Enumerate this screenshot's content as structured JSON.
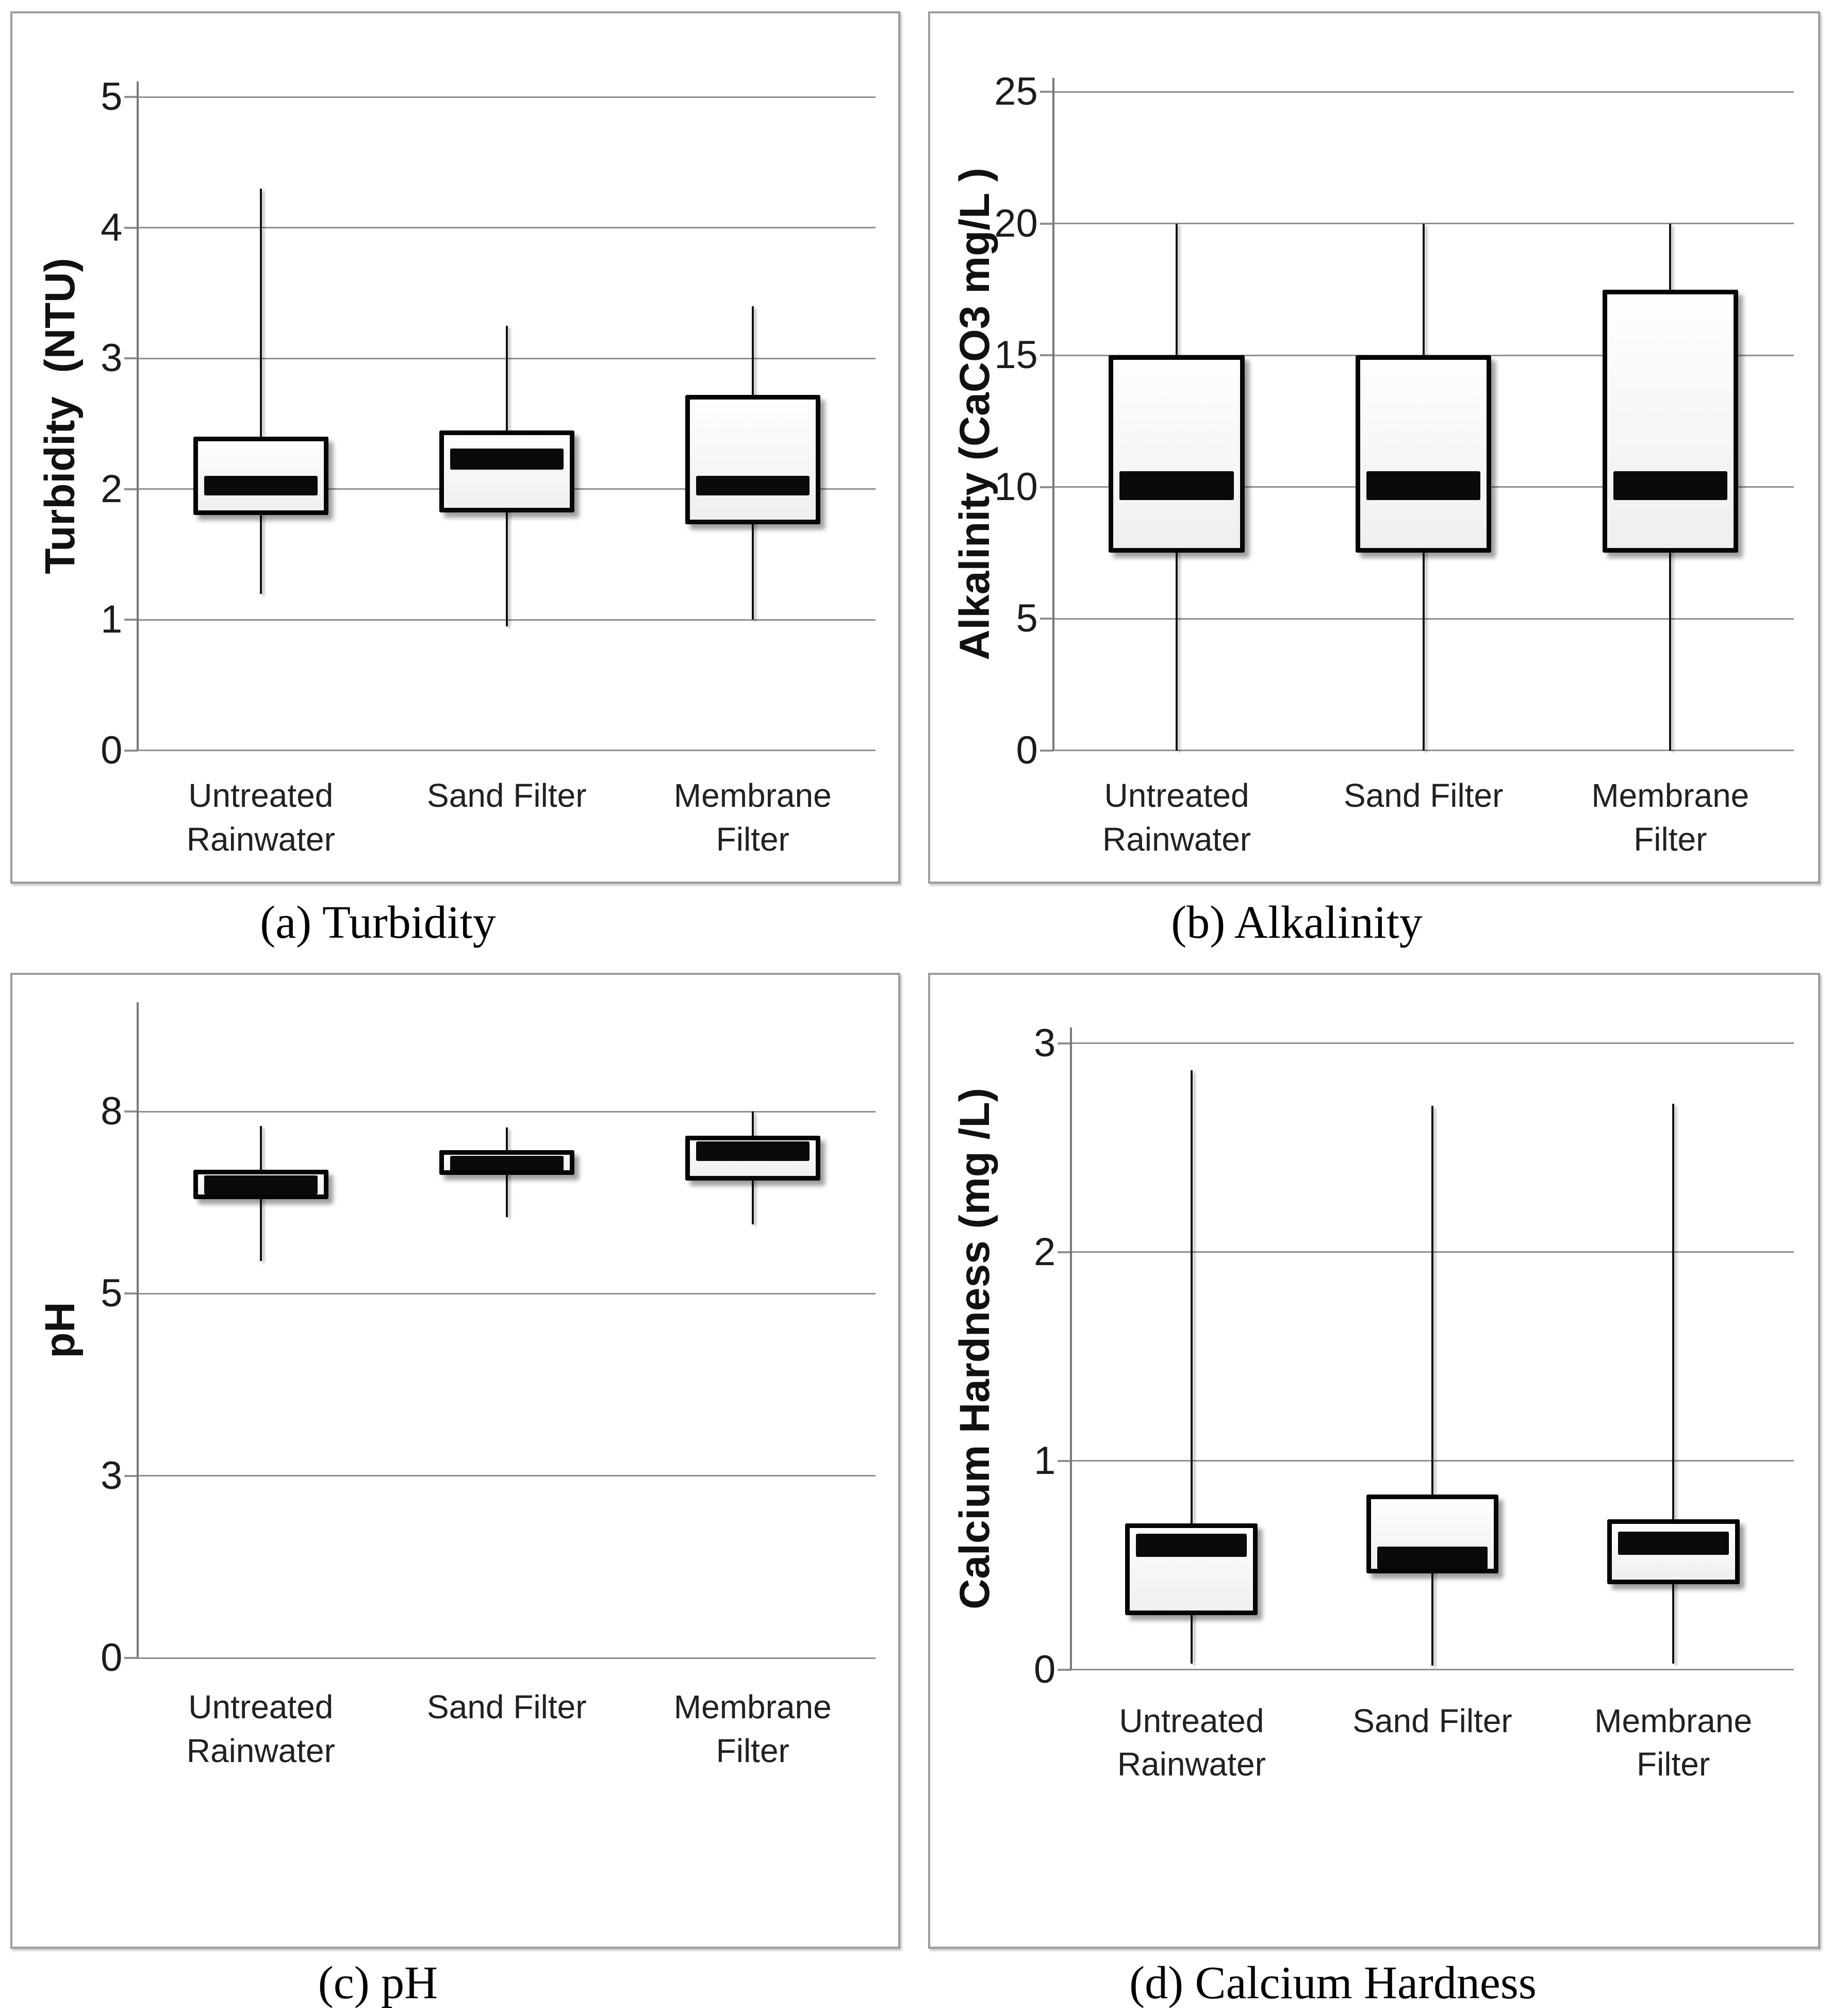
{
  "figure": {
    "background": "#ffffff",
    "colors": {
      "grid": "#8f8f8f",
      "axis": "#787878",
      "box_border": "#050505",
      "box_fill": "#f6f6f6",
      "median": "#0a0a0a",
      "panel_border": "#9c9c9c",
      "text": "#1c1c1c"
    },
    "captions": [
      "(a) Turbidity",
      "(b) Alkalinity",
      "(c) pH",
      "(d) Calcium Hardness"
    ]
  },
  "chart_data": [
    {
      "id": "a",
      "type": "box",
      "caption": "(a) Turbidity",
      "ylabel": "Turbidity  (NTU)",
      "xlabel": "",
      "ylim": [
        0,
        5
      ],
      "grid": true,
      "legend": "none",
      "yticks": [
        {
          "v": 0,
          "label": "0"
        },
        {
          "v": 1,
          "label": "1"
        },
        {
          "v": 2,
          "label": "2"
        },
        {
          "v": 3,
          "label": "3"
        },
        {
          "v": 4,
          "label": "4"
        },
        {
          "v": 5,
          "label": "5"
        }
      ],
      "categories": [
        "Untreated Rainwater",
        "Sand Filter",
        "Membrane Filter"
      ],
      "series": [
        {
          "name": "Untreated Rainwater",
          "whisker_low": 1.2,
          "q1": 1.8,
          "median": 2.0,
          "q3": 2.4,
          "whisker_high": 4.3,
          "median_band": [
            1.95,
            2.1
          ]
        },
        {
          "name": "Sand Filter",
          "whisker_low": 0.95,
          "q1": 1.82,
          "median": 2.22,
          "q3": 2.45,
          "whisker_high": 3.25,
          "median_band": [
            2.15,
            2.31
          ]
        },
        {
          "name": "Membrane Filter",
          "whisker_low": 1.0,
          "q1": 1.73,
          "median": 2.02,
          "q3": 2.72,
          "whisker_high": 3.4,
          "median_band": [
            1.95,
            2.1
          ]
        }
      ]
    },
    {
      "id": "b",
      "type": "box",
      "caption": "(b) Alkalinity",
      "ylabel": "Alkalinity (CaCO3 mg/L )",
      "xlabel": "",
      "ylim": [
        0,
        25
      ],
      "grid": true,
      "legend": "none",
      "yticks": [
        {
          "v": 0,
          "label": "0"
        },
        {
          "v": 5,
          "label": "5"
        },
        {
          "v": 10,
          "label": "10"
        },
        {
          "v": 15,
          "label": "15"
        },
        {
          "v": 20,
          "label": "20"
        },
        {
          "v": 25,
          "label": "25"
        }
      ],
      "categories": [
        "Untreated Rainwater",
        "Sand Filter",
        "Membrane Filter"
      ],
      "series": [
        {
          "name": "Untreated Rainwater",
          "whisker_low": 0,
          "q1": 7.5,
          "median": 10,
          "q3": 15,
          "whisker_high": 20,
          "median_band": [
            9.5,
            10.6
          ]
        },
        {
          "name": "Sand Filter",
          "whisker_low": 0,
          "q1": 7.5,
          "median": 10,
          "q3": 15,
          "whisker_high": 20,
          "median_band": [
            9.5,
            10.6
          ]
        },
        {
          "name": "Membrane Filter",
          "whisker_low": 0,
          "q1": 7.5,
          "median": 10,
          "q3": 17.5,
          "whisker_high": 20,
          "median_band": [
            9.5,
            10.6
          ]
        }
      ]
    },
    {
      "id": "c",
      "type": "box",
      "caption": "(c) pH",
      "ylabel": "pH",
      "xlabel": "",
      "ylim": [
        0,
        9
      ],
      "grid": true,
      "legend": "none",
      "note": "gridlines at 0, 2.5, 5, 7.5 carry rounded labels 0, 3, 5, 8",
      "yticks": [
        {
          "v": 0,
          "label": "0"
        },
        {
          "v": 2.5,
          "label": "3"
        },
        {
          "v": 5,
          "label": "5"
        },
        {
          "v": 7.5,
          "label": "8"
        }
      ],
      "categories": [
        "Untreated Rainwater",
        "Sand Filter",
        "Membrane Filter"
      ],
      "series": [
        {
          "name": "Untreated Rainwater",
          "whisker_low": 5.45,
          "q1": 6.3,
          "median": 6.55,
          "q3": 6.7,
          "whisker_high": 7.3,
          "median_band": [
            6.42,
            6.68
          ]
        },
        {
          "name": "Sand Filter",
          "whisker_low": 6.05,
          "q1": 6.63,
          "median": 6.8,
          "q3": 6.97,
          "whisker_high": 7.28,
          "median_band": [
            6.67,
            6.94
          ]
        },
        {
          "name": "Membrane Filter",
          "whisker_low": 5.95,
          "q1": 6.55,
          "median": 7.0,
          "q3": 7.17,
          "whisker_high": 7.5,
          "median_band": [
            6.86,
            7.13
          ]
        }
      ]
    },
    {
      "id": "d",
      "type": "box",
      "caption": "(d) Calcium Hardness",
      "ylabel": "Calcium Hardness (mg /L)",
      "xlabel": "",
      "ylim": [
        0,
        3
      ],
      "grid": true,
      "legend": "none",
      "yticks": [
        {
          "v": 0,
          "label": "0"
        },
        {
          "v": 1,
          "label": "1"
        },
        {
          "v": 2,
          "label": "2"
        },
        {
          "v": 3,
          "label": "3"
        }
      ],
      "categories": [
        "Untreated Rainwater",
        "Sand Filter",
        "Membrane Filter"
      ],
      "series": [
        {
          "name": "Untreated Rainwater",
          "whisker_low": 0.03,
          "q1": 0.26,
          "median": 0.6,
          "q3": 0.7,
          "whisker_high": 2.87,
          "median_band": [
            0.54,
            0.65
          ]
        },
        {
          "name": "Sand Filter",
          "whisker_low": 0.02,
          "q1": 0.46,
          "median": 0.53,
          "q3": 0.84,
          "whisker_high": 2.7,
          "median_band": [
            0.48,
            0.59
          ]
        },
        {
          "name": "Membrane Filter",
          "whisker_low": 0.03,
          "q1": 0.41,
          "median": 0.6,
          "q3": 0.72,
          "whisker_high": 2.71,
          "median_band": [
            0.55,
            0.66
          ]
        }
      ]
    }
  ]
}
